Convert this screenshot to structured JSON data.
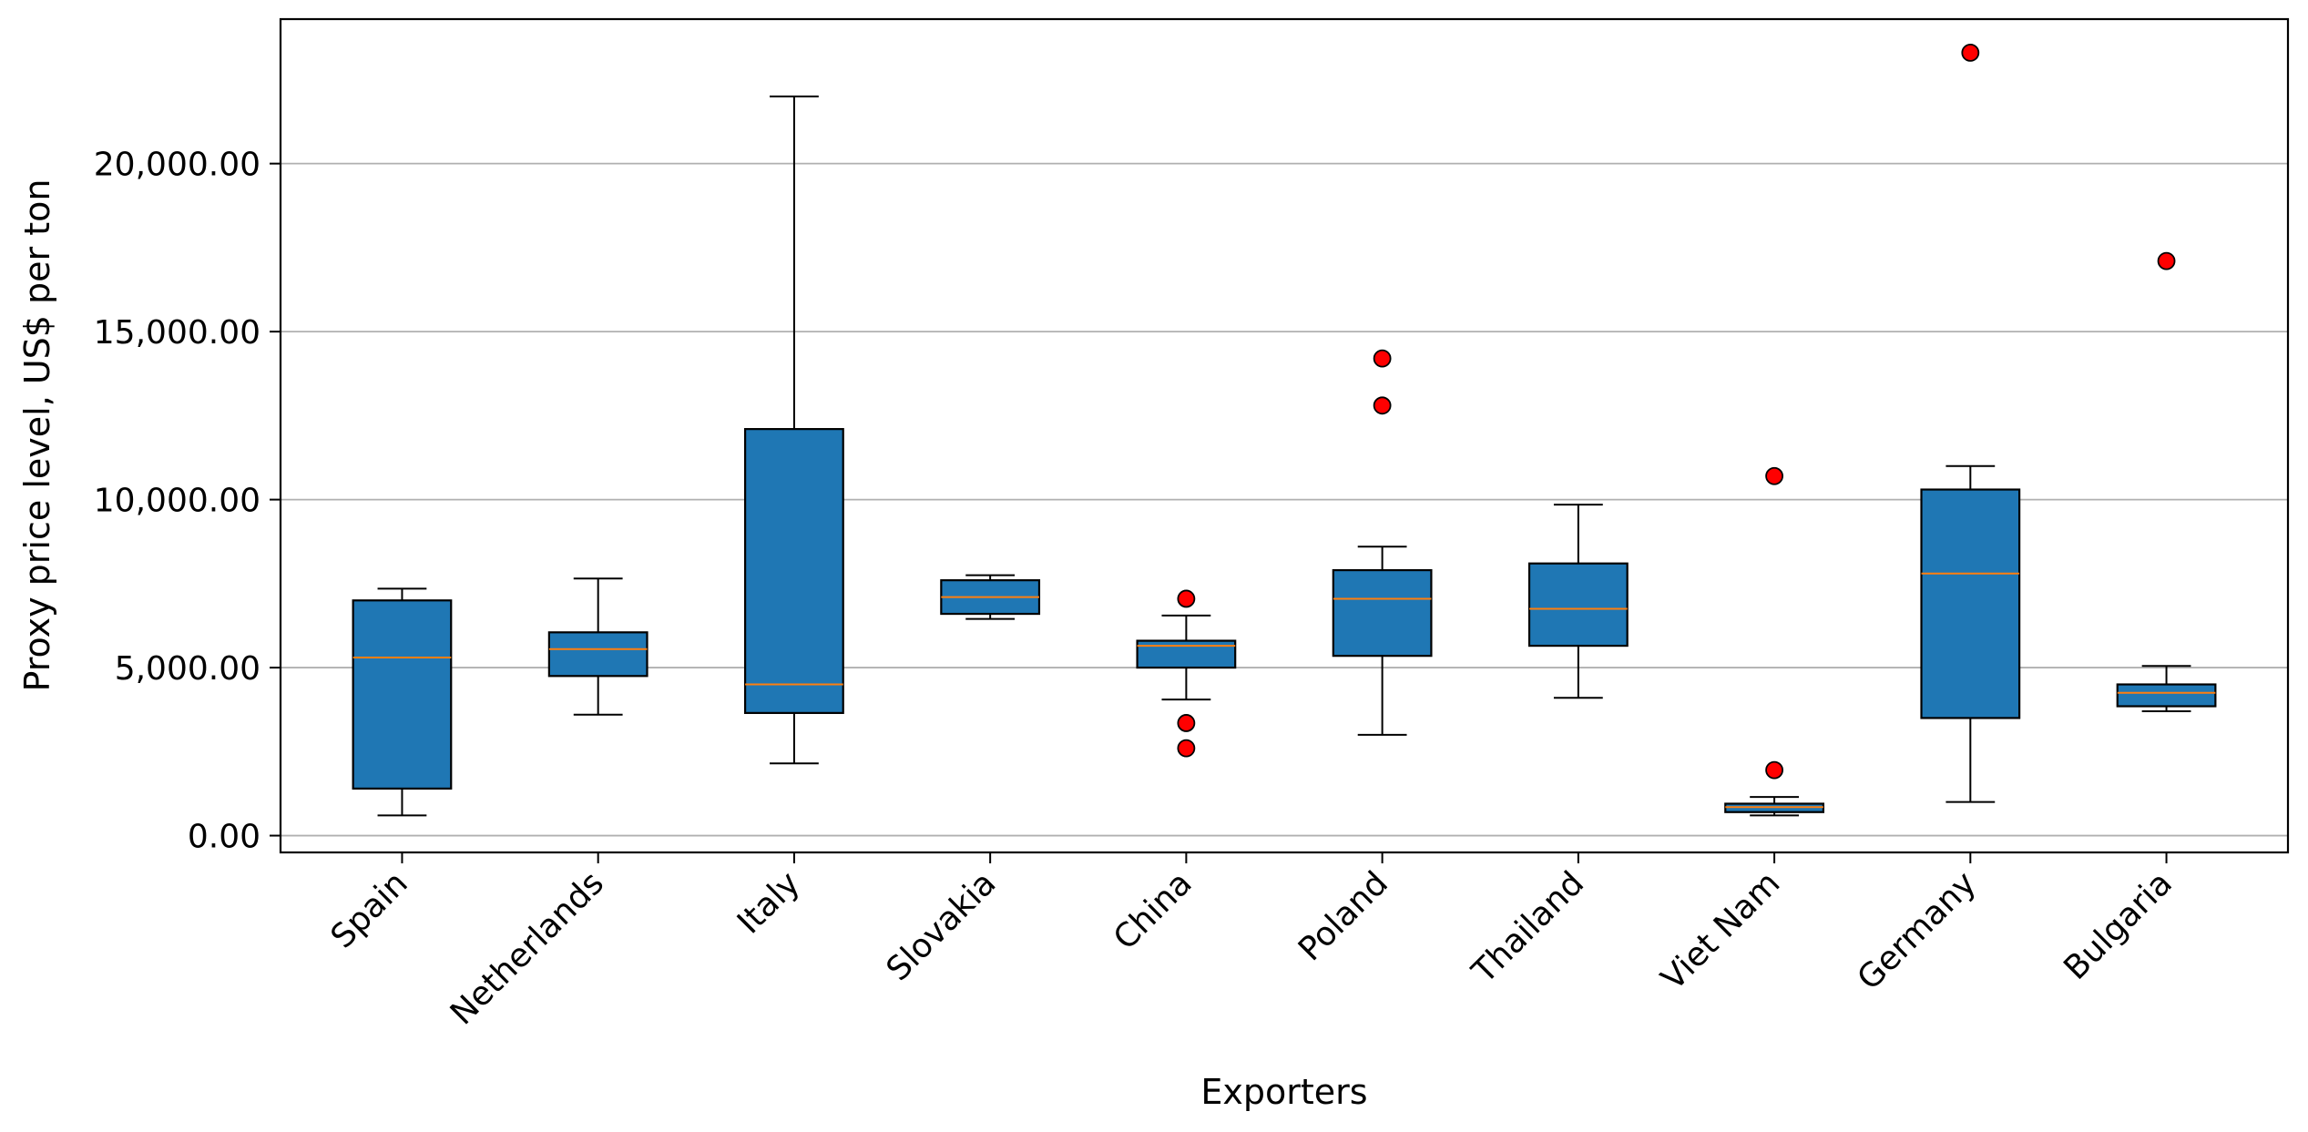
{
  "chart_data": {
    "type": "boxplot",
    "title": "",
    "xlabel": "Exporters",
    "ylabel": "Proxy price level, US$ per ton",
    "ylim": [
      -500,
      24300
    ],
    "y_ticks": [
      0,
      5000,
      10000,
      15000,
      20000
    ],
    "y_tick_labels": [
      "0.00",
      "5,000.00",
      "10,000.00",
      "15,000.00",
      "20,000.00"
    ],
    "grid": "horizontal",
    "colors": {
      "box_fill": "#1f77b4",
      "median": "#ff7f0e",
      "outlier_fill": "#ff0000",
      "grid": "#b0b0b0",
      "edge": "#000000"
    },
    "categories": [
      "Spain",
      "Netherlands",
      "Italy",
      "Slovakia",
      "China",
      "Poland",
      "Thailand",
      "Viet Nam",
      "Germany",
      "Bulgaria"
    ],
    "boxes": [
      {
        "category": "Spain",
        "whisker_low": 600,
        "q1": 1400,
        "median": 5300,
        "q3": 7000,
        "whisker_high": 7350,
        "outliers": []
      },
      {
        "category": "Netherlands",
        "whisker_low": 3600,
        "q1": 4750,
        "median": 5550,
        "q3": 6050,
        "whisker_high": 7650,
        "outliers": []
      },
      {
        "category": "Italy",
        "whisker_low": 2150,
        "q1": 3650,
        "median": 4500,
        "q3": 12100,
        "whisker_high": 22000,
        "outliers": []
      },
      {
        "category": "Slovakia",
        "whisker_low": 6450,
        "q1": 6600,
        "median": 7100,
        "q3": 7600,
        "whisker_high": 7750,
        "outliers": []
      },
      {
        "category": "China",
        "whisker_low": 4050,
        "q1": 5000,
        "median": 5650,
        "q3": 5800,
        "whisker_high": 6550,
        "outliers": [
          7050,
          3350,
          2600
        ]
      },
      {
        "category": "Poland",
        "whisker_low": 3000,
        "q1": 5350,
        "median": 7050,
        "q3": 7900,
        "whisker_high": 8600,
        "outliers": [
          14200,
          12800
        ]
      },
      {
        "category": "Thailand",
        "whisker_low": 4100,
        "q1": 5650,
        "median": 6750,
        "q3": 8100,
        "whisker_high": 9850,
        "outliers": []
      },
      {
        "category": "Viet Nam",
        "whisker_low": 600,
        "q1": 700,
        "median": 850,
        "q3": 950,
        "whisker_high": 1150,
        "outliers": [
          10700,
          1950
        ]
      },
      {
        "category": "Germany",
        "whisker_low": 1000,
        "q1": 3500,
        "median": 7800,
        "q3": 10300,
        "whisker_high": 11000,
        "outliers": [
          23300
        ]
      },
      {
        "category": "Bulgaria",
        "whisker_low": 3700,
        "q1": 3850,
        "median": 4250,
        "q3": 4500,
        "whisker_high": 5050,
        "outliers": [
          17100
        ]
      }
    ]
  }
}
